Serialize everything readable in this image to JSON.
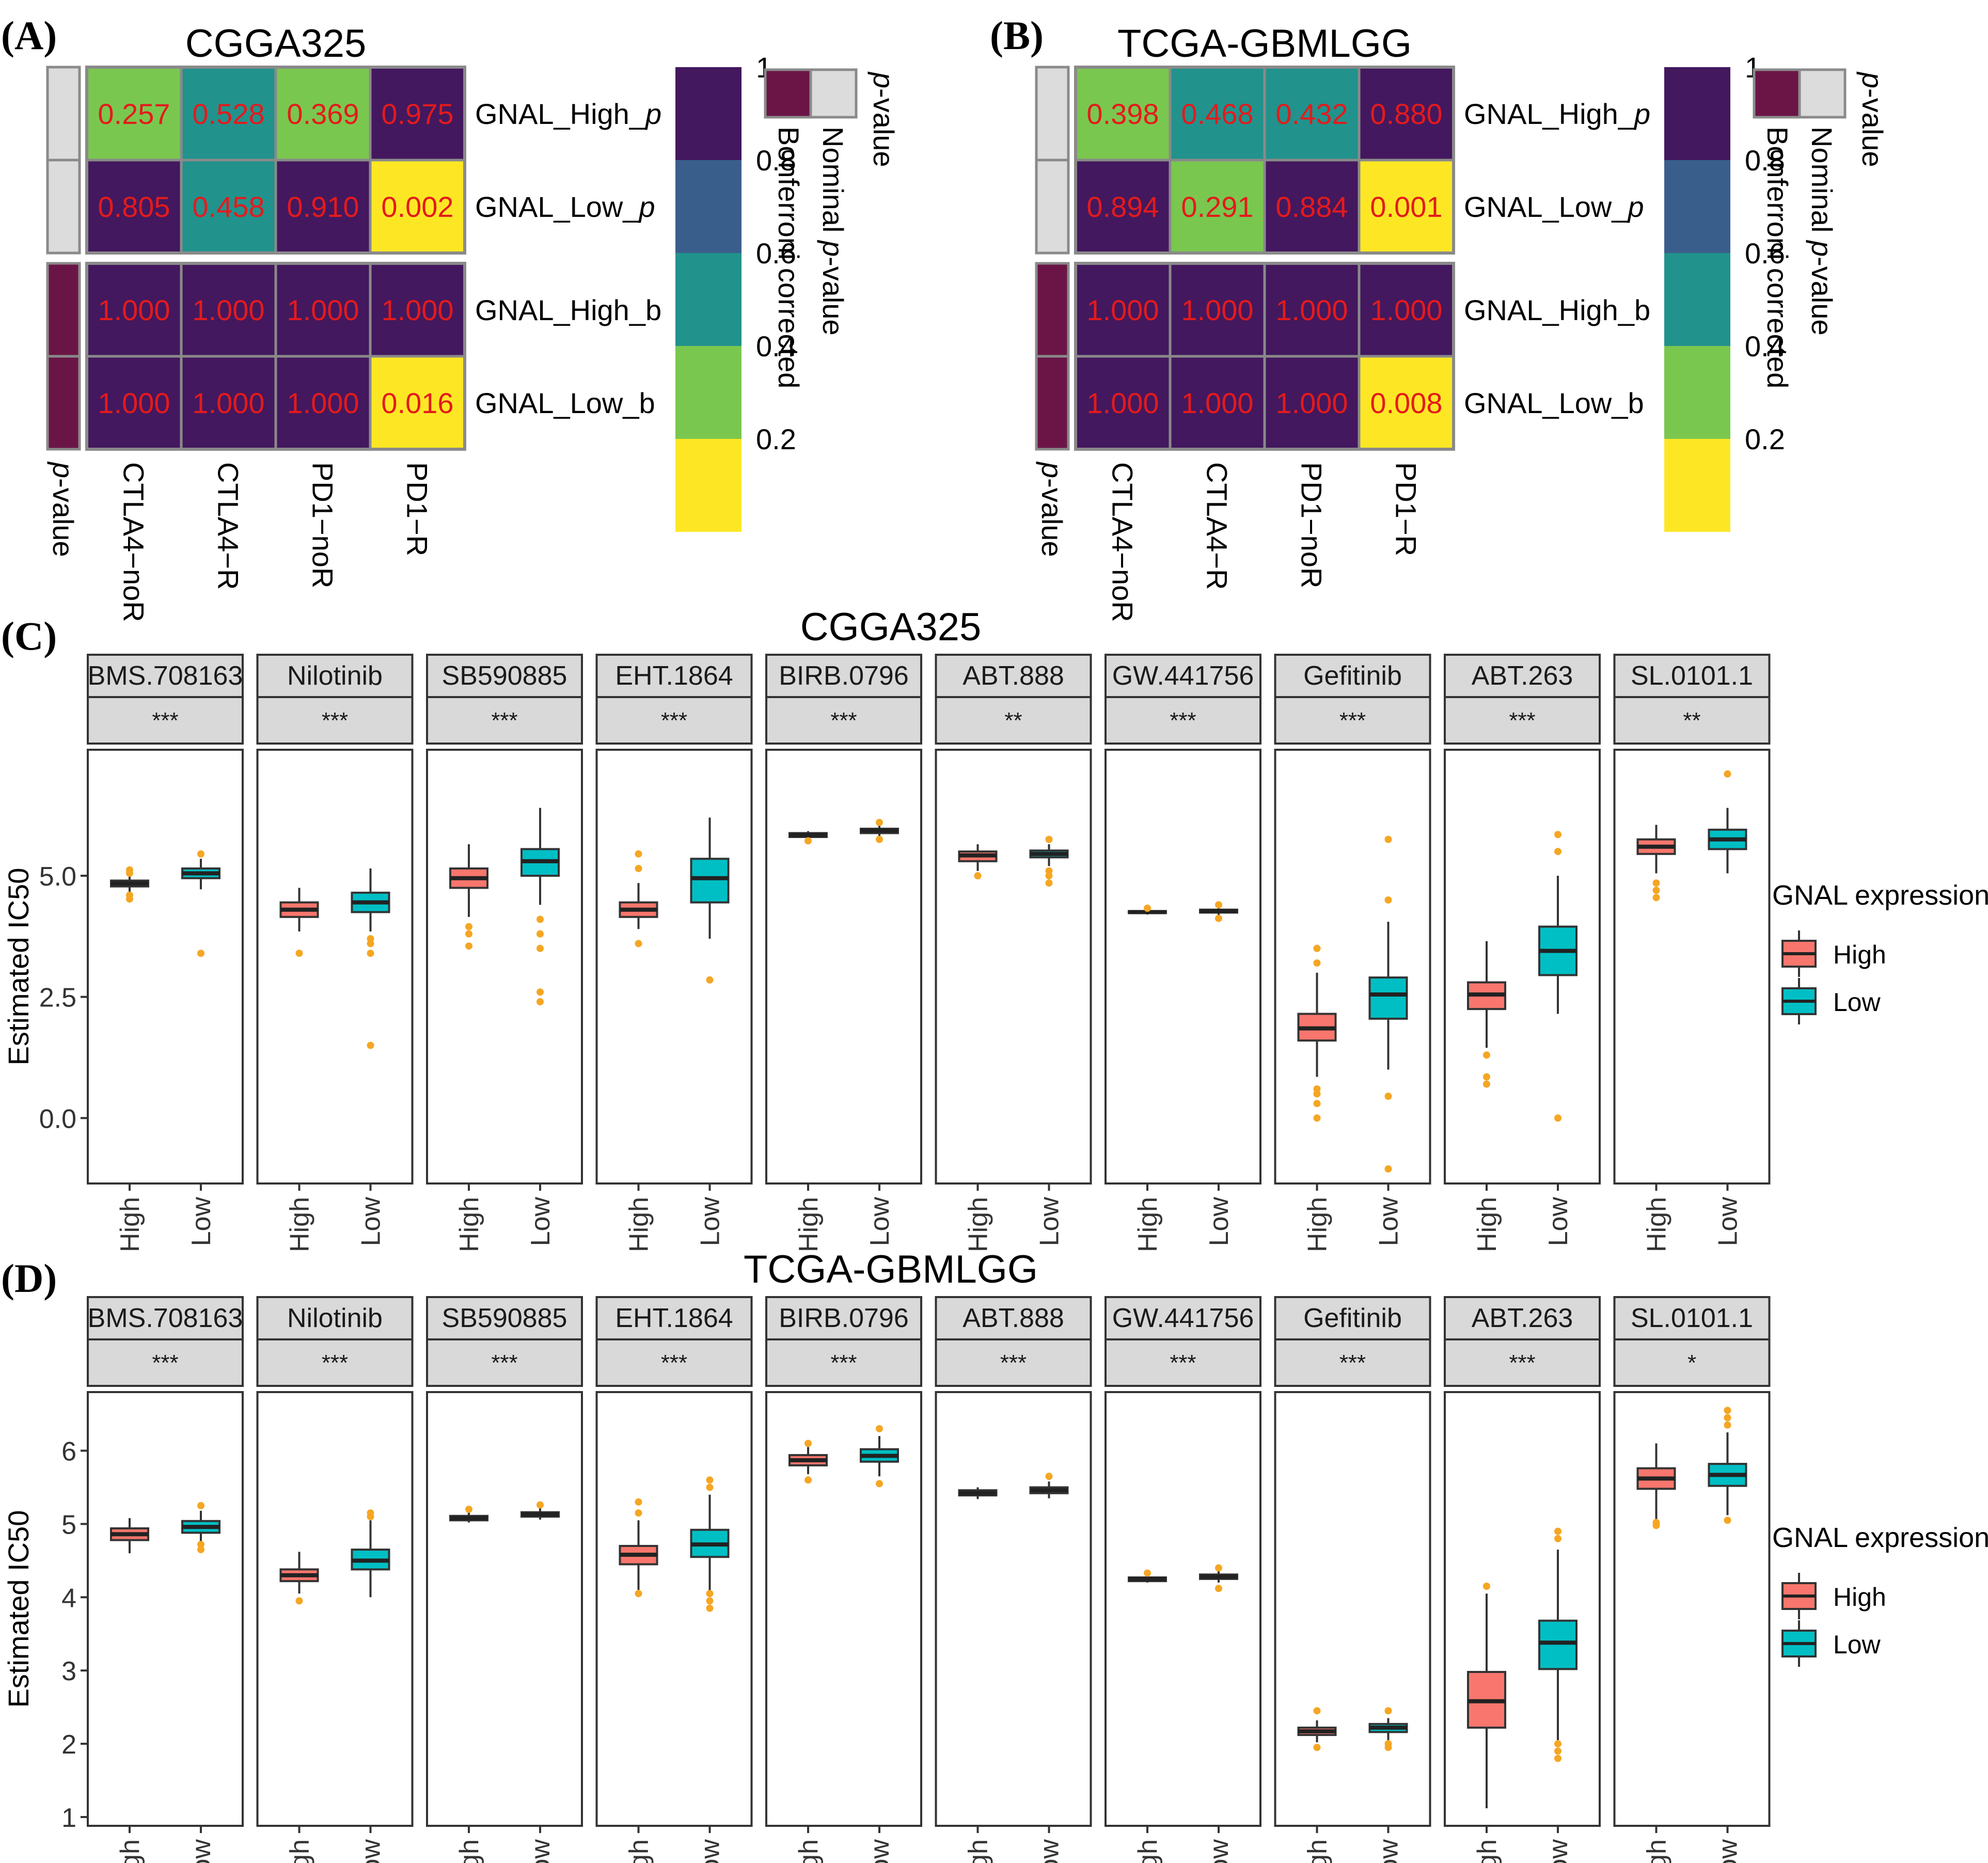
{
  "chart_data": [
    {
      "id": "A",
      "type": "heatmap",
      "panel_label": "(A)",
      "title": "CGGA325",
      "columns": [
        "CTLA4−noR",
        "CTLA4−R",
        "PD1−noR",
        "PD1−R"
      ],
      "rows": [
        {
          "label_main": "GNAL_High_",
          "label_italic": "p",
          "group": "nominal",
          "values": [
            0.257,
            0.528,
            0.369,
            0.975
          ],
          "texts": [
            "0.257",
            "0.528",
            "0.369",
            "0.975"
          ]
        },
        {
          "label_main": "GNAL_Low_",
          "label_italic": "p",
          "group": "nominal",
          "values": [
            0.805,
            0.458,
            0.91,
            0.002
          ],
          "texts": [
            "0.805",
            "0.458",
            "0.910",
            "0.002"
          ]
        },
        {
          "label_main": "GNAL_High_b",
          "label_italic": "",
          "group": "bonferroni",
          "values": [
            1.0,
            1.0,
            1.0,
            1.0
          ],
          "texts": [
            "1.000",
            "1.000",
            "1.000",
            "1.000"
          ]
        },
        {
          "label_main": "GNAL_Low_b",
          "label_italic": "",
          "group": "bonferroni",
          "values": [
            1.0,
            1.0,
            1.0,
            0.016
          ],
          "texts": [
            "1.000",
            "1.000",
            "1.000",
            "0.016"
          ]
        }
      ],
      "annotation_axis_label": {
        "italic": "p",
        "rest": "-value"
      },
      "colorbar": {
        "ticks": [
          "1",
          "0.8",
          "0.6",
          "0.4",
          "0.2"
        ],
        "range": [
          0,
          1
        ]
      },
      "legend": {
        "title_italic": "p",
        "title_rest": "-value",
        "entries": [
          "Nominal ",
          "p",
          "-value",
          "Bonferroni corrected"
        ]
      }
    },
    {
      "id": "B",
      "type": "heatmap",
      "panel_label": "(B)",
      "title": "TCGA-GBMLGG",
      "columns": [
        "CTLA4−noR",
        "CTLA4−R",
        "PD1−noR",
        "PD1−R"
      ],
      "rows": [
        {
          "label_main": "GNAL_High_",
          "label_italic": "p",
          "group": "nominal",
          "values": [
            0.398,
            0.468,
            0.432,
            0.88
          ],
          "texts": [
            "0.398",
            "0.468",
            "0.432",
            "0.880"
          ]
        },
        {
          "label_main": "GNAL_Low_",
          "label_italic": "p",
          "group": "nominal",
          "values": [
            0.894,
            0.291,
            0.884,
            0.001
          ],
          "texts": [
            "0.894",
            "0.291",
            "0.884",
            "0.001"
          ]
        },
        {
          "label_main": "GNAL_High_b",
          "label_italic": "",
          "group": "bonferroni",
          "values": [
            1.0,
            1.0,
            1.0,
            1.0
          ],
          "texts": [
            "1.000",
            "1.000",
            "1.000",
            "1.000"
          ]
        },
        {
          "label_main": "GNAL_Low_b",
          "label_italic": "",
          "group": "bonferroni",
          "values": [
            1.0,
            1.0,
            1.0,
            0.008
          ],
          "texts": [
            "1.000",
            "1.000",
            "1.000",
            "0.008"
          ]
        }
      ],
      "annotation_axis_label": {
        "italic": "p",
        "rest": "-value"
      },
      "colorbar": {
        "ticks": [
          "1",
          "0.8",
          "0.6",
          "0.4",
          "0.2"
        ],
        "range": [
          0,
          1
        ]
      },
      "legend": {
        "title_italic": "p",
        "title_rest": "-value",
        "entries": [
          "Nominal ",
          "p",
          "-value",
          "Bonferroni corrected"
        ]
      }
    },
    {
      "id": "C",
      "type": "box",
      "panel_label": "(C)",
      "title": "CGGA325",
      "ylabel": "Estimated IC50",
      "ylim": [
        -1.35,
        7.6
      ],
      "yticks": [
        0,
        2.5,
        5
      ],
      "ytick_labels": [
        "0.0",
        "2.5",
        "5.0"
      ],
      "x_categories": [
        "High",
        "Low"
      ],
      "legend": {
        "title": "GNAL expression",
        "entries": [
          {
            "label": "High",
            "color": "#F8766D"
          },
          {
            "label": "Low",
            "color": "#00BFC4"
          }
        ]
      },
      "facets": [
        {
          "drug": "BMS.708163",
          "sig": "***",
          "boxes": [
            {
              "group": "High",
              "q1": 4.78,
              "median": 4.84,
              "q3": 4.9,
              "wlo": 4.63,
              "whi": 4.98,
              "outliers": [
                4.52,
                4.6,
                5.05,
                5.12
              ]
            },
            {
              "group": "Low",
              "q1": 4.95,
              "median": 5.05,
              "q3": 5.15,
              "wlo": 4.72,
              "whi": 5.35,
              "outliers": [
                3.4,
                5.45
              ]
            }
          ]
        },
        {
          "drug": "Nilotinib",
          "sig": "***",
          "boxes": [
            {
              "group": "High",
              "q1": 4.15,
              "median": 4.3,
              "q3": 4.45,
              "wlo": 3.85,
              "whi": 4.75,
              "outliers": [
                3.4
              ]
            },
            {
              "group": "Low",
              "q1": 4.25,
              "median": 4.45,
              "q3": 4.65,
              "wlo": 3.85,
              "whi": 5.15,
              "outliers": [
                1.5,
                3.4,
                3.6,
                3.7
              ]
            }
          ]
        },
        {
          "drug": "SB590885",
          "sig": "***",
          "boxes": [
            {
              "group": "High",
              "q1": 4.75,
              "median": 4.95,
              "q3": 5.15,
              "wlo": 4.15,
              "whi": 5.65,
              "outliers": [
                3.55,
                3.8,
                3.95
              ]
            },
            {
              "group": "Low",
              "q1": 5.0,
              "median": 5.3,
              "q3": 5.55,
              "wlo": 4.4,
              "whi": 6.4,
              "outliers": [
                2.4,
                2.6,
                3.5,
                3.8,
                4.1
              ]
            }
          ]
        },
        {
          "drug": "EHT.1864",
          "sig": "***",
          "boxes": [
            {
              "group": "High",
              "q1": 4.15,
              "median": 4.3,
              "q3": 4.45,
              "wlo": 3.9,
              "whi": 4.85,
              "outliers": [
                3.6,
                5.15,
                5.45
              ]
            },
            {
              "group": "Low",
              "q1": 4.45,
              "median": 4.95,
              "q3": 5.35,
              "wlo": 3.7,
              "whi": 6.2,
              "outliers": [
                2.85
              ]
            }
          ]
        },
        {
          "drug": "BIRB.0796",
          "sig": "***",
          "boxes": [
            {
              "group": "High",
              "q1": 5.8,
              "median": 5.84,
              "q3": 5.88,
              "wlo": 5.75,
              "whi": 5.92,
              "outliers": [
                5.72
              ]
            },
            {
              "group": "Low",
              "q1": 5.88,
              "median": 5.93,
              "q3": 5.97,
              "wlo": 5.82,
              "whi": 6.05,
              "outliers": [
                5.75,
                6.1
              ]
            }
          ]
        },
        {
          "drug": "ABT.888",
          "sig": "**",
          "boxes": [
            {
              "group": "High",
              "q1": 5.3,
              "median": 5.42,
              "q3": 5.5,
              "wlo": 5.1,
              "whi": 5.65,
              "outliers": [
                5.0
              ]
            },
            {
              "group": "Low",
              "q1": 5.38,
              "median": 5.45,
              "q3": 5.52,
              "wlo": 5.2,
              "whi": 5.65,
              "outliers": [
                4.85,
                5.0,
                5.1,
                5.75
              ]
            }
          ]
        },
        {
          "drug": "GW.441756",
          "sig": "***",
          "boxes": [
            {
              "group": "High",
              "q1": 4.23,
              "median": 4.25,
              "q3": 4.27,
              "wlo": 4.2,
              "whi": 4.3,
              "outliers": [
                4.33
              ]
            },
            {
              "group": "Low",
              "q1": 4.24,
              "median": 4.27,
              "q3": 4.3,
              "wlo": 4.18,
              "whi": 4.35,
              "outliers": [
                4.12,
                4.4
              ]
            }
          ]
        },
        {
          "drug": "Gefitinib",
          "sig": "***",
          "boxes": [
            {
              "group": "High",
              "q1": 1.6,
              "median": 1.85,
              "q3": 2.15,
              "wlo": 0.85,
              "whi": 3.0,
              "outliers": [
                0.0,
                0.3,
                0.5,
                0.6,
                3.2,
                3.5
              ]
            },
            {
              "group": "Low",
              "q1": 2.05,
              "median": 2.55,
              "q3": 2.9,
              "wlo": 1.0,
              "whi": 4.05,
              "outliers": [
                -1.05,
                0.45,
                4.5,
                5.75
              ]
            }
          ]
        },
        {
          "drug": "ABT.263",
          "sig": "***",
          "boxes": [
            {
              "group": "High",
              "q1": 2.25,
              "median": 2.55,
              "q3": 2.8,
              "wlo": 1.45,
              "whi": 3.65,
              "outliers": [
                0.7,
                0.85,
                1.3
              ]
            },
            {
              "group": "Low",
              "q1": 2.95,
              "median": 3.45,
              "q3": 3.95,
              "wlo": 2.15,
              "whi": 5.0,
              "outliers": [
                0.0,
                5.5,
                5.85
              ]
            }
          ]
        },
        {
          "drug": "SL.0101.1",
          "sig": "**",
          "boxes": [
            {
              "group": "High",
              "q1": 5.45,
              "median": 5.6,
              "q3": 5.75,
              "wlo": 5.05,
              "whi": 6.05,
              "outliers": [
                4.55,
                4.7,
                4.85
              ]
            },
            {
              "group": "Low",
              "q1": 5.55,
              "median": 5.75,
              "q3": 5.95,
              "wlo": 5.05,
              "whi": 6.4,
              "outliers": [
                7.1
              ]
            }
          ]
        }
      ]
    },
    {
      "id": "D",
      "type": "box",
      "panel_label": "(D)",
      "title": "TCGA-GBMLGG",
      "ylabel": "Estimated IC50",
      "ylim": [
        0.88,
        6.8
      ],
      "yticks": [
        1,
        2,
        3,
        4,
        5,
        6
      ],
      "ytick_labels": [
        "1",
        "2",
        "3",
        "4",
        "5",
        "6"
      ],
      "x_categories": [
        "High",
        "Low"
      ],
      "legend": {
        "title": "GNAL expression",
        "entries": [
          {
            "label": "High",
            "color": "#F8766D"
          },
          {
            "label": "Low",
            "color": "#00BFC4"
          }
        ]
      },
      "facets": [
        {
          "drug": "BMS.708163",
          "sig": "***",
          "boxes": [
            {
              "group": "High",
              "q1": 4.78,
              "median": 4.86,
              "q3": 4.94,
              "wlo": 4.6,
              "whi": 5.08,
              "outliers": []
            },
            {
              "group": "Low",
              "q1": 4.88,
              "median": 4.96,
              "q3": 5.04,
              "wlo": 4.72,
              "whi": 5.18,
              "outliers": [
                4.65,
                4.72,
                5.25
              ]
            }
          ]
        },
        {
          "drug": "Nilotinib",
          "sig": "***",
          "boxes": [
            {
              "group": "High",
              "q1": 4.22,
              "median": 4.3,
              "q3": 4.38,
              "wlo": 4.05,
              "whi": 4.62,
              "outliers": [
                3.95
              ]
            },
            {
              "group": "Low",
              "q1": 4.38,
              "median": 4.5,
              "q3": 4.65,
              "wlo": 4.0,
              "whi": 5.05,
              "outliers": [
                5.1,
                5.15
              ]
            }
          ]
        },
        {
          "drug": "SB590885",
          "sig": "***",
          "boxes": [
            {
              "group": "High",
              "q1": 5.05,
              "median": 5.08,
              "q3": 5.11,
              "wlo": 5.02,
              "whi": 5.16,
              "outliers": [
                5.2
              ]
            },
            {
              "group": "Low",
              "q1": 5.1,
              "median": 5.13,
              "q3": 5.16,
              "wlo": 5.06,
              "whi": 5.22,
              "outliers": [
                5.26
              ]
            }
          ]
        },
        {
          "drug": "EHT.1864",
          "sig": "***",
          "boxes": [
            {
              "group": "High",
              "q1": 4.45,
              "median": 4.58,
              "q3": 4.7,
              "wlo": 4.1,
              "whi": 5.05,
              "outliers": [
                4.05,
                5.15,
                5.3
              ]
            },
            {
              "group": "Low",
              "q1": 4.55,
              "median": 4.72,
              "q3": 4.92,
              "wlo": 4.05,
              "whi": 5.4,
              "outliers": [
                3.85,
                3.95,
                4.05,
                5.5,
                5.6
              ]
            }
          ]
        },
        {
          "drug": "BIRB.0796",
          "sig": "***",
          "boxes": [
            {
              "group": "High",
              "q1": 5.8,
              "median": 5.87,
              "q3": 5.94,
              "wlo": 5.68,
              "whi": 6.05,
              "outliers": [
                5.6,
                6.1
              ]
            },
            {
              "group": "Low",
              "q1": 5.85,
              "median": 5.93,
              "q3": 6.02,
              "wlo": 5.65,
              "whi": 6.2,
              "outliers": [
                5.55,
                6.3
              ]
            }
          ]
        },
        {
          "drug": "ABT.888",
          "sig": "***",
          "boxes": [
            {
              "group": "High",
              "q1": 5.39,
              "median": 5.42,
              "q3": 5.46,
              "wlo": 5.34,
              "whi": 5.5,
              "outliers": []
            },
            {
              "group": "Low",
              "q1": 5.42,
              "median": 5.46,
              "q3": 5.5,
              "wlo": 5.35,
              "whi": 5.58,
              "outliers": [
                5.65
              ]
            }
          ]
        },
        {
          "drug": "GW.441756",
          "sig": "***",
          "boxes": [
            {
              "group": "High",
              "q1": 4.22,
              "median": 4.25,
              "q3": 4.27,
              "wlo": 4.2,
              "whi": 4.3,
              "outliers": [
                4.33
              ]
            },
            {
              "group": "Low",
              "q1": 4.25,
              "median": 4.28,
              "q3": 4.31,
              "wlo": 4.2,
              "whi": 4.36,
              "outliers": [
                4.12,
                4.4
              ]
            }
          ]
        },
        {
          "drug": "Gefitinib",
          "sig": "***",
          "boxes": [
            {
              "group": "High",
              "q1": 2.12,
              "median": 2.17,
              "q3": 2.22,
              "wlo": 2.02,
              "whi": 2.32,
              "outliers": [
                1.95,
                2.45
              ]
            },
            {
              "group": "Low",
              "q1": 2.16,
              "median": 2.22,
              "q3": 2.27,
              "wlo": 2.05,
              "whi": 2.35,
              "outliers": [
                1.95,
                2.0,
                2.45
              ]
            }
          ]
        },
        {
          "drug": "ABT.263",
          "sig": "***",
          "boxes": [
            {
              "group": "High",
              "q1": 2.22,
              "median": 2.58,
              "q3": 2.98,
              "wlo": 1.12,
              "whi": 4.05,
              "outliers": [
                4.15
              ]
            },
            {
              "group": "Low",
              "q1": 3.02,
              "median": 3.38,
              "q3": 3.68,
              "wlo": 2.05,
              "whi": 4.65,
              "outliers": [
                1.8,
                1.9,
                2.0,
                4.8,
                4.9
              ]
            }
          ]
        },
        {
          "drug": "SL.0101.1",
          "sig": "*",
          "boxes": [
            {
              "group": "High",
              "q1": 5.48,
              "median": 5.62,
              "q3": 5.76,
              "wlo": 5.05,
              "whi": 6.1,
              "outliers": [
                4.98,
                5.02
              ]
            },
            {
              "group": "Low",
              "q1": 5.52,
              "median": 5.67,
              "q3": 5.82,
              "wlo": 5.12,
              "whi": 6.25,
              "outliers": [
                5.05,
                6.35,
                6.45,
                6.55
              ]
            }
          ]
        }
      ]
    }
  ],
  "colors": {
    "High": "#F8766D",
    "Low": "#00BFC4",
    "outlier": "#F5A623",
    "strip_fill": "#D9D9D9",
    "cell_text": "#E41A1C",
    "nominal_annotation": "#DCDCDC",
    "bonferroni_annotation": "#6B1547",
    "viridis_bins": [
      "#FDE725",
      "#7AC74F",
      "#22928C",
      "#3A5E8C",
      "#43185E"
    ]
  }
}
